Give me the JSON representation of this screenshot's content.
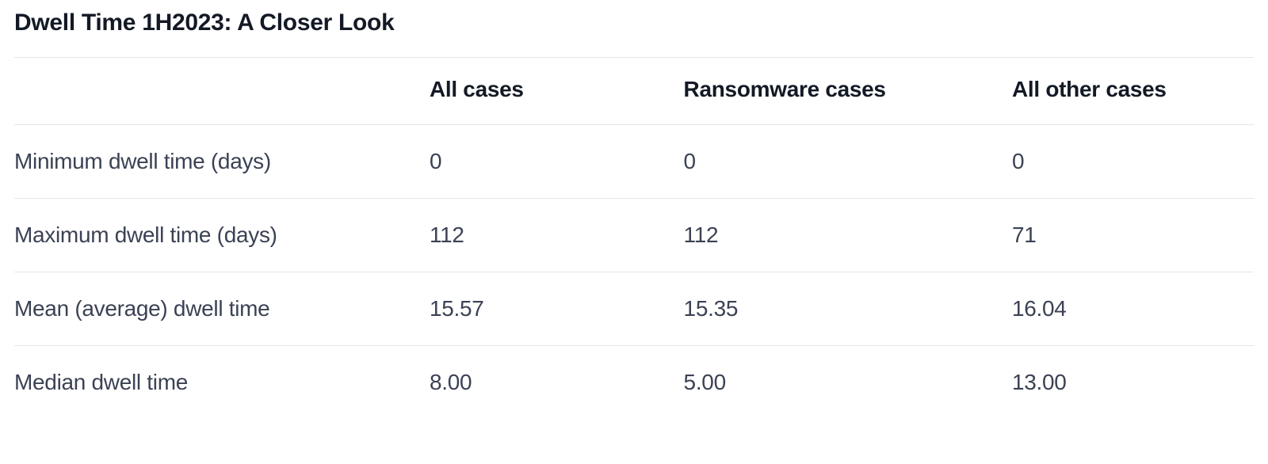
{
  "title": "Dwell Time 1H2023: A Closer Look",
  "table": {
    "type": "table",
    "background_color": "#ffffff",
    "border_color": "#e6e6e6",
    "header_text_color": "#131925",
    "body_text_color": "#3b4254",
    "header_font_weight": 800,
    "body_font_weight": 400,
    "font_size_pt": 21,
    "columns": [
      {
        "label": "",
        "width_pct": 33.5,
        "align": "left"
      },
      {
        "label": "All cases",
        "width_pct": 20.5,
        "align": "left"
      },
      {
        "label": "Ransomware cases",
        "width_pct": 26.5,
        "align": "left"
      },
      {
        "label": "All other cases",
        "width_pct": 19.5,
        "align": "left"
      }
    ],
    "rows": [
      {
        "metric": "Minimum dwell time (days)",
        "all": "0",
        "ransomware": "0",
        "other": "0"
      },
      {
        "metric": "Maximum dwell time (days)",
        "all": "112",
        "ransomware": "112",
        "other": "71"
      },
      {
        "metric": "Mean (average) dwell time",
        "all": "15.57",
        "ransomware": "15.35",
        "other": "16.04"
      },
      {
        "metric": "Median dwell time",
        "all": "8.00",
        "ransomware": "5.00",
        "other": "13.00"
      }
    ]
  }
}
